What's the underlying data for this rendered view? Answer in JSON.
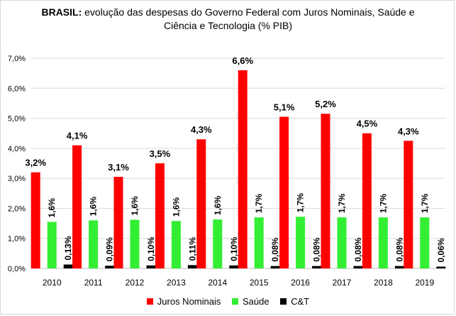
{
  "chart_data": {
    "type": "bar",
    "title_bold": "BRASIL:",
    "title_rest": "evolução das despesas do Governo Federal com Juros Nominais, Saúde e",
    "title_line2": "Ciência e Tecnologia (% PIB)",
    "categories": [
      "2010",
      "2011",
      "2012",
      "2013",
      "2014",
      "2015",
      "2016",
      "2017",
      "2018",
      "2019"
    ],
    "ylim": [
      0,
      7
    ],
    "yticks": [
      "0,0%",
      "1,0%",
      "2,0%",
      "3,0%",
      "4,0%",
      "5,0%",
      "6,0%",
      "7,0%"
    ],
    "grid": true,
    "legend_position": "bottom",
    "series": [
      {
        "name": "Juros Nominais",
        "color": "#ff0000",
        "values": [
          3.2,
          4.1,
          3.05,
          3.5,
          4.3,
          6.6,
          5.05,
          5.15,
          4.5,
          4.25
        ],
        "labels": [
          "3,2%",
          "4,1%",
          "3,1%",
          "3,5%",
          "4,3%",
          "6,6%",
          "5,1%",
          "5,2%",
          "4,5%",
          "4,3%"
        ]
      },
      {
        "name": "Saúde",
        "color": "#33ee33",
        "values": [
          1.55,
          1.6,
          1.62,
          1.58,
          1.63,
          1.7,
          1.72,
          1.7,
          1.7,
          1.7
        ],
        "labels": [
          "1,6%",
          "1,6%",
          "1,6%",
          "1,6%",
          "1,6%",
          "1,7%",
          "1,7%",
          "1,7%",
          "1,7%",
          "1,7%"
        ]
      },
      {
        "name": "C&T",
        "color": "#000000",
        "values": [
          0.13,
          0.09,
          0.1,
          0.11,
          0.1,
          0.08,
          0.08,
          0.08,
          0.08,
          0.06
        ],
        "labels": [
          "0,13%",
          "0,09%",
          "0,10%",
          "0,11%",
          "0,10%",
          "0,08%",
          "0,08%",
          "0,08%",
          "0,08%",
          "0,06%"
        ]
      }
    ]
  }
}
